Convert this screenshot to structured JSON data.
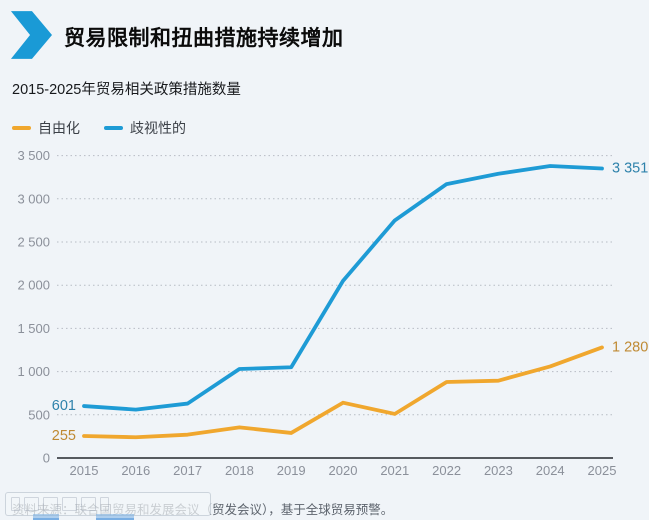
{
  "page": {
    "background": "#f0f4f8"
  },
  "header": {
    "title": "贸易限制和扭曲措施持续增加",
    "chevron_color": "#1a9ad6"
  },
  "subtitle": "2015-2025年贸易相关政策措施数量",
  "legend": [
    {
      "id": "liberalization",
      "label": "自由化",
      "color": "#f0a72e"
    },
    {
      "id": "discriminatory",
      "label": "歧视性的",
      "color": "#1e9bd5"
    }
  ],
  "chart_data": {
    "type": "line",
    "title": "贸易限制和扭曲措施持续增加",
    "subtitle": "2015-2025年贸易相关政策措施数量",
    "xlabel": "",
    "ylabel": "",
    "x_labels": [
      "2015",
      "2016",
      "2017",
      "2018",
      "2019",
      "2020",
      "2021",
      "2022",
      "2023",
      "2024",
      "2025"
    ],
    "y_ticks": [
      {
        "v": 0,
        "label": "0"
      },
      {
        "v": 500,
        "label": "500"
      },
      {
        "v": 1000,
        "label": "1 000"
      },
      {
        "v": 1500,
        "label": "1 500"
      },
      {
        "v": 2000,
        "label": "2 000"
      },
      {
        "v": 2500,
        "label": "2 500"
      },
      {
        "v": 3000,
        "label": "3 000"
      },
      {
        "v": 3500,
        "label": "3 500"
      }
    ],
    "ylim": [
      0,
      3500
    ],
    "grid": "dotted horizontal",
    "legend_position": "top-left",
    "series": [
      {
        "id": "liberalization",
        "name": "自由化",
        "color": "#f0a72e",
        "label_color": "#bf8a33",
        "values": [
          255,
          240,
          270,
          355,
          290,
          640,
          510,
          880,
          895,
          1060,
          1280
        ],
        "start_label": "255",
        "end_label": "1 280"
      },
      {
        "id": "discriminatory",
        "name": "歧视性的",
        "color": "#1e9bd5",
        "label_color": "#2e82ab",
        "values": [
          601,
          560,
          630,
          1030,
          1050,
          2050,
          2750,
          3170,
          3290,
          3380,
          3351
        ],
        "start_label": "601",
        "end_label": "3 351"
      }
    ],
    "axis_colors": {
      "tick_label": "#8b909a",
      "gridline": "#b6bbc3",
      "axis_line": "#23272c"
    }
  },
  "footer": {
    "source": "资料来源：联合国贸易和发展会议（贸发会议），基于全球贸易预警。"
  }
}
